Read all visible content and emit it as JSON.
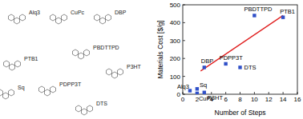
{
  "chart_data": {
    "type": "scatter",
    "x_label": "Number of Steps",
    "y_label": "Materials Cost [$/g]",
    "x": [
      1,
      2,
      2,
      3,
      3,
      6,
      8,
      10,
      14
    ],
    "values": [
      20,
      5,
      30,
      10,
      150,
      170,
      150,
      440,
      430
    ],
    "point_labels": [
      "Alq3",
      "CuPc",
      "Sq",
      "P3HT",
      "DBP",
      "PDPP3T",
      "DTS",
      "PBDTTPD",
      "PTB1"
    ],
    "color": "#3050c8",
    "marker": "square",
    "fit_line": {
      "x": [
        2.5,
        14
      ],
      "values": [
        130,
        440
      ],
      "color": "#e02020"
    },
    "xlim": [
      0,
      16
    ],
    "xticks": [
      0,
      2,
      4,
      6,
      8,
      10,
      12,
      14,
      16
    ],
    "ylim": [
      0,
      500
    ],
    "yticks": [
      0,
      100,
      200,
      300,
      400,
      500
    ]
  },
  "structures": [
    "Alq3",
    "CuPc",
    "DBP",
    "PTB1",
    "PBDTTPD",
    "P3HT",
    "Sq",
    "PDPP3T",
    "DTS"
  ]
}
